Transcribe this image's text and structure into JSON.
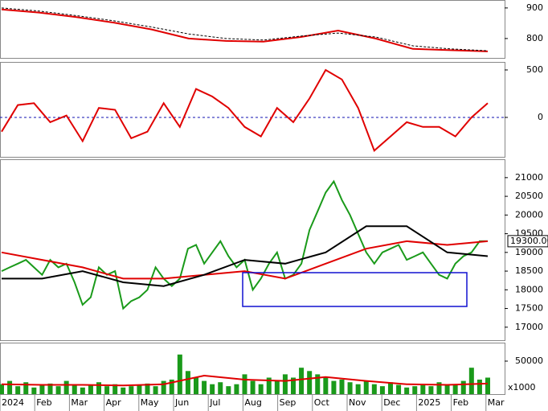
{
  "chart_data": [
    {
      "type": "line",
      "ylim": [
        734,
        926
      ],
      "yticks": [
        900,
        800
      ],
      "series": [
        {
          "name": "index",
          "color": "#e00000",
          "values": [
            895,
            885,
            870,
            852,
            830,
            800,
            792,
            790,
            805,
            826,
            800,
            766,
            762,
            758
          ]
        },
        {
          "name": "index-ma",
          "color": "#000000",
          "dashed": true,
          "values": [
            900,
            890,
            875,
            858,
            838,
            815,
            800,
            795,
            808,
            818,
            805,
            776,
            766,
            760
          ]
        }
      ]
    },
    {
      "type": "line",
      "ylim": [
        -424,
        576
      ],
      "yticks": [
        500,
        0
      ],
      "zero_line": true,
      "series": [
        {
          "name": "oscillator",
          "color": "#e00000",
          "values": [
            -150,
            130,
            150,
            -50,
            20,
            -250,
            100,
            80,
            -220,
            -150,
            150,
            -100,
            300,
            220,
            100,
            -100,
            -200,
            100,
            -50,
            200,
            500,
            400,
            100,
            -350,
            -200,
            -50,
            -100,
            -100,
            -200,
            0,
            150
          ]
        }
      ]
    },
    {
      "type": "line",
      "ylim": [
        16630,
        21470
      ],
      "yticks": [
        21000,
        20500,
        20000,
        19500,
        19000,
        18500,
        18000,
        17500,
        17000
      ],
      "last_label": "19300.00",
      "series": [
        {
          "name": "price",
          "color": "#1a9a1a",
          "values": [
            18500,
            18600,
            18700,
            18800,
            18600,
            18400,
            18800,
            18600,
            18700,
            18200,
            17600,
            17800,
            18600,
            18400,
            18500,
            17500,
            17700,
            17800,
            18000,
            18600,
            18300,
            18100,
            18300,
            19100,
            19200,
            18700,
            19000,
            19300,
            18900,
            18600,
            18800,
            18000,
            18300,
            18700,
            19000,
            18300,
            18400,
            18700,
            19600,
            20100,
            20600,
            20900,
            20400,
            20000,
            19500,
            19000,
            18700,
            19000,
            19100,
            19200,
            18800,
            18900,
            19000,
            18700,
            18400,
            18300,
            18700,
            18900,
            19000,
            19300,
            19300
          ]
        },
        {
          "name": "ma-long",
          "color": "#e00000",
          "values": [
            19000,
            18800,
            18600,
            18300,
            18300,
            18400,
            18500,
            18300,
            18700,
            19100,
            19300,
            19200,
            19300
          ]
        },
        {
          "name": "ma-short",
          "color": "#000000",
          "values": [
            18300,
            18300,
            18500,
            18200,
            18100,
            18400,
            18800,
            18700,
            19000,
            19700,
            19700,
            19000,
            18900
          ]
        }
      ]
    },
    {
      "type": "bar",
      "ylim": [
        0,
        76800
      ],
      "yticks": [
        50000
      ],
      "unit_label": "x1000",
      "x_labels": [
        "2024",
        "Feb",
        "Mar",
        "Apr",
        "May",
        "Jun",
        "Jul",
        "Aug",
        "Sep",
        "Oct",
        "Nov",
        "Dec",
        "2025",
        "Feb",
        "Mar"
      ],
      "series": [
        {
          "name": "volume",
          "color": "#1a9a1a",
          "values": [
            15000,
            20000,
            12000,
            18000,
            10000,
            14000,
            16000,
            12000,
            20000,
            15000,
            10000,
            14000,
            18000,
            12000,
            15000,
            10000,
            12000,
            14000,
            16000,
            12000,
            20000,
            22000,
            60000,
            35000,
            25000,
            20000,
            15000,
            18000,
            12000,
            15000,
            30000,
            20000,
            15000,
            25000,
            20000,
            30000,
            25000,
            40000,
            35000,
            30000,
            25000,
            20000,
            22000,
            18000,
            15000,
            20000,
            15000,
            12000,
            18000,
            14000,
            10000,
            12000,
            15000,
            12000,
            18000,
            15000,
            14000,
            20000,
            40000,
            22000,
            25000
          ]
        },
        {
          "name": "volume-ma",
          "color": "#e00000",
          "line": true,
          "values": [
            15000,
            14000,
            14000,
            13000,
            15000,
            28000,
            22000,
            20000,
            26000,
            20000,
            15000,
            14000,
            16000
          ]
        }
      ]
    }
  ]
}
